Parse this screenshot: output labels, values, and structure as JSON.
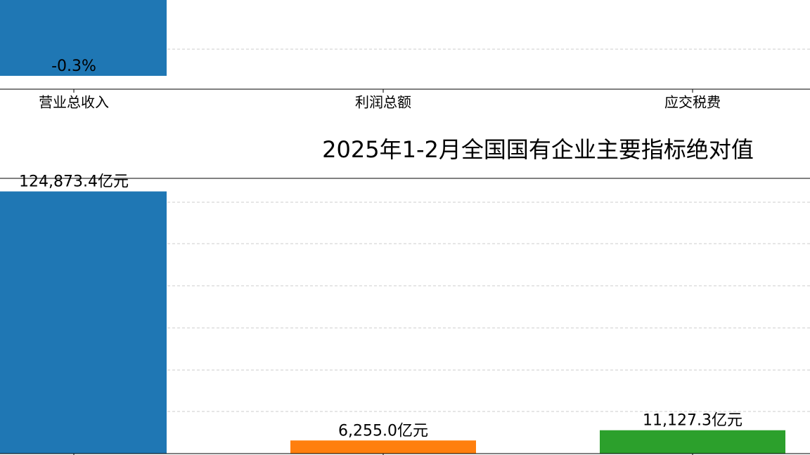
{
  "chart_data": [
    {
      "type": "bar",
      "categories": [
        "营业总收入",
        "利润总额",
        "应交税费"
      ],
      "values": [
        -0.3,
        null,
        null
      ],
      "value_labels": [
        "-0.3%",
        null,
        null
      ],
      "colors": [
        "#1f77b4",
        "#ff7f0e",
        "#2ca02c"
      ],
      "ylim": [
        -0.35,
        0
      ]
    },
    {
      "type": "bar",
      "title": "2025年1-2月全国国有企业主要指标绝对值",
      "values": [
        124873.4,
        6255.0,
        11127.3
      ],
      "value_labels": [
        "124,873.4亿元",
        "6,255.0亿元",
        "11,127.3亿元"
      ],
      "colors": [
        "#1f77b4",
        "#ff7f0e",
        "#2ca02c"
      ],
      "ylim": [
        0,
        131100
      ]
    }
  ]
}
